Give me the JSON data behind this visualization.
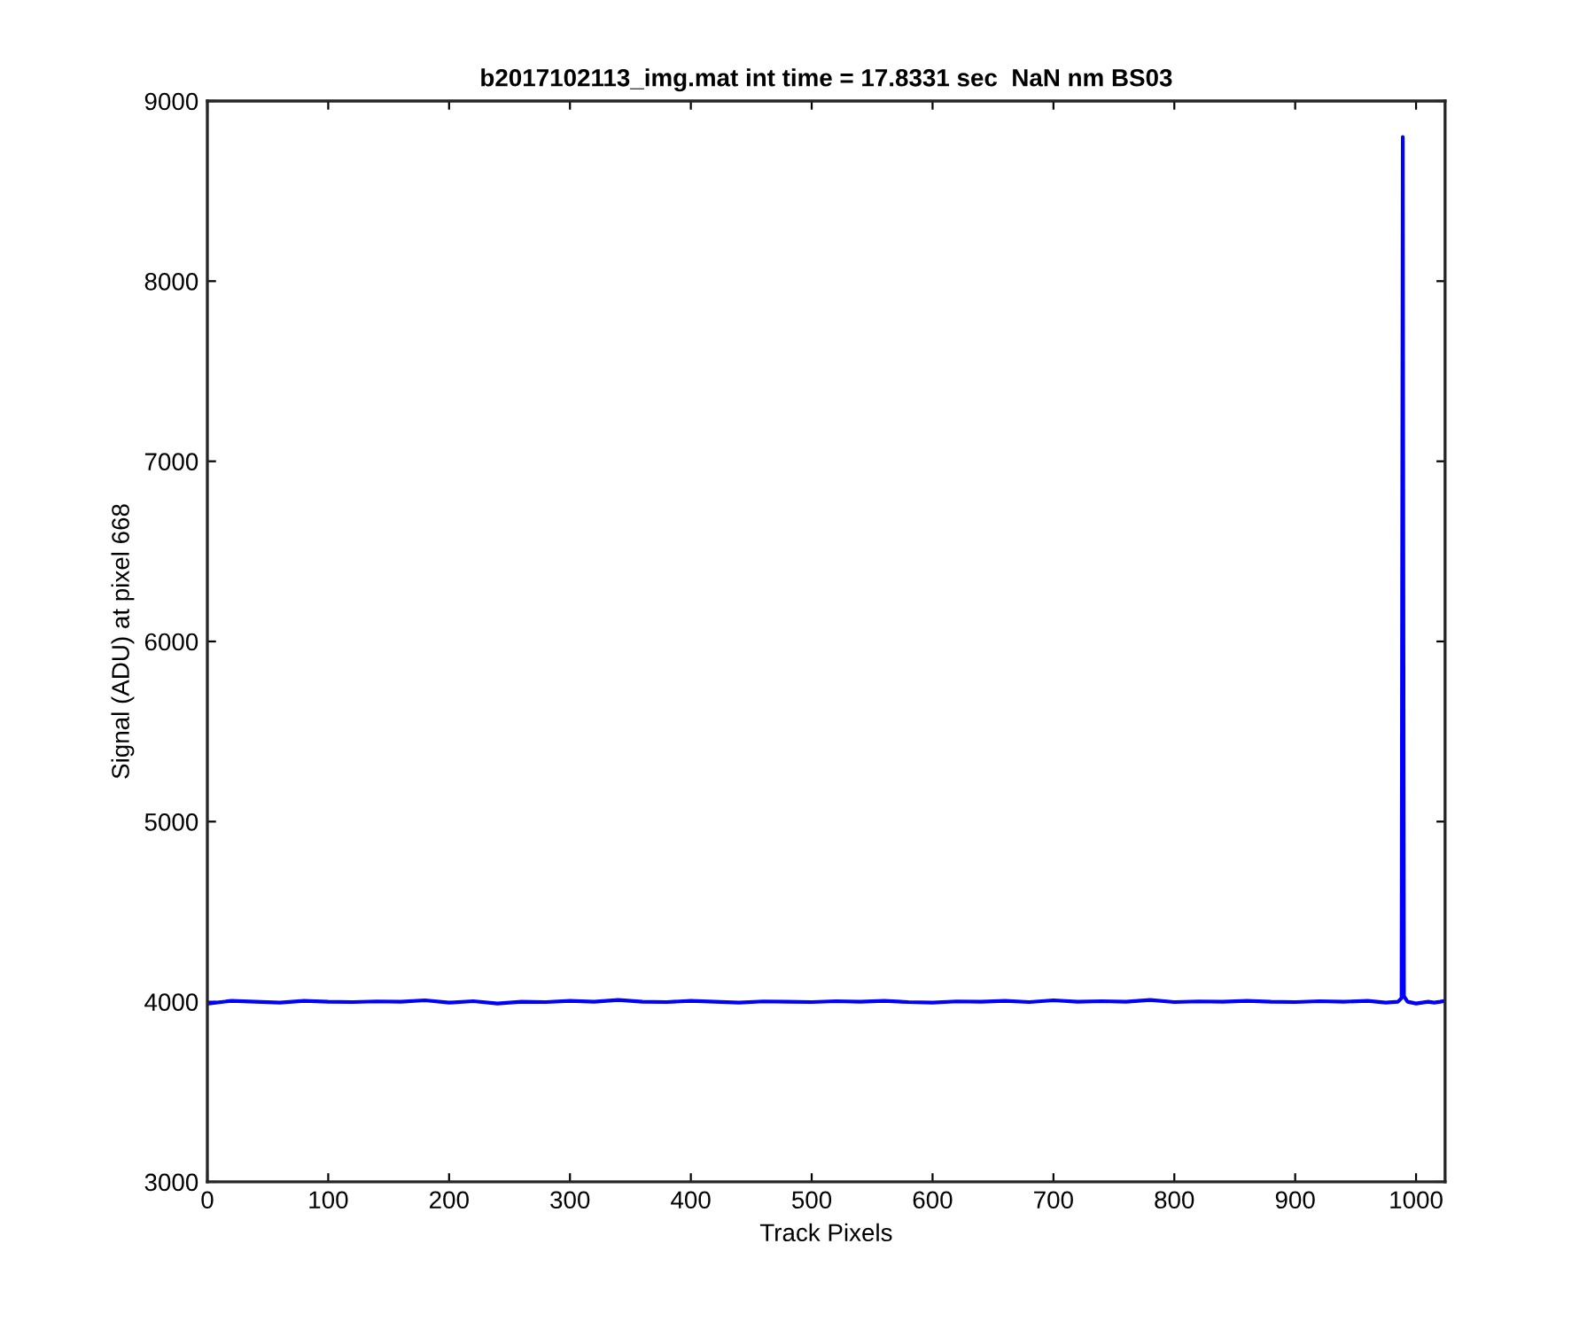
{
  "chart_data": {
    "type": "line",
    "title": "b2017102113_img.mat int time = 17.8331 sec  NaN nm BS03",
    "xlabel": "Track Pixels",
    "ylabel": "Signal (ADU) at pixel 668",
    "x": [
      1,
      20,
      40,
      60,
      80,
      100,
      120,
      140,
      160,
      180,
      200,
      220,
      240,
      260,
      280,
      300,
      320,
      340,
      360,
      380,
      400,
      420,
      440,
      460,
      480,
      500,
      520,
      540,
      560,
      580,
      600,
      620,
      640,
      660,
      680,
      700,
      720,
      740,
      760,
      780,
      800,
      820,
      840,
      860,
      880,
      900,
      920,
      940,
      960,
      975,
      985,
      988,
      989,
      990,
      993,
      1000,
      1010,
      1015,
      1020,
      1024
    ],
    "series": [
      {
        "color": "#0000ff",
        "values": [
          3990,
          4005,
          4000,
          3995,
          4005,
          4000,
          3998,
          4002,
          4000,
          4008,
          3995,
          4003,
          3990,
          4000,
          3998,
          4005,
          4000,
          4010,
          4000,
          3998,
          4005,
          4000,
          3995,
          4002,
          4000,
          3998,
          4003,
          4000,
          4005,
          3998,
          3995,
          4002,
          4000,
          4005,
          3998,
          4008,
          4000,
          4003,
          4000,
          4010,
          3998,
          4002,
          4000,
          4005,
          4000,
          3998,
          4003,
          4000,
          4005,
          3995,
          4000,
          4020,
          8800,
          4030,
          4000,
          3990,
          4000,
          3995,
          4000,
          4005
        ]
      }
    ],
    "xlim": [
      0,
      1024
    ],
    "ylim": [
      3000,
      9000
    ],
    "xticks": [
      0,
      100,
      200,
      300,
      400,
      500,
      600,
      700,
      800,
      900,
      1000
    ],
    "yticks": [
      3000,
      4000,
      5000,
      6000,
      7000,
      8000,
      9000
    ],
    "grid": false,
    "legend": false
  }
}
